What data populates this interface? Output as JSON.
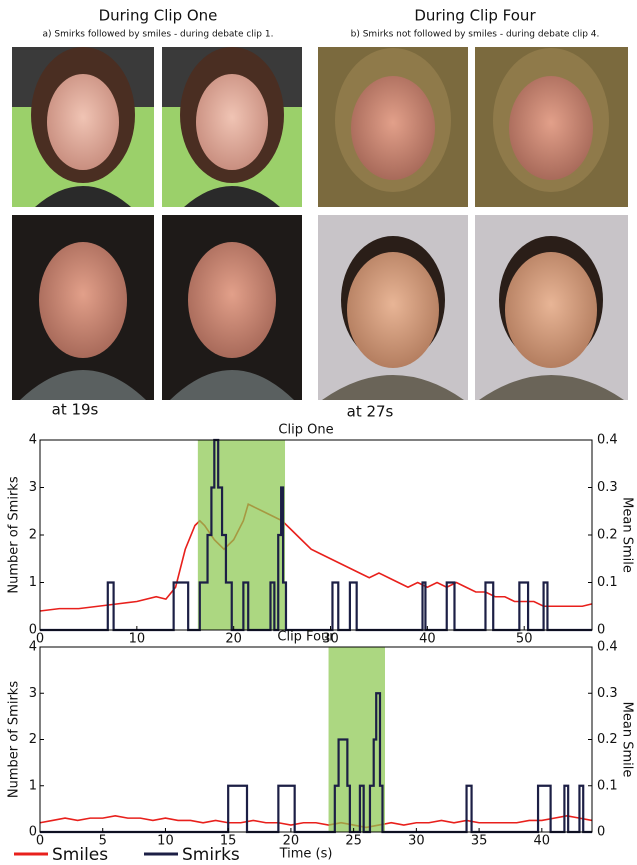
{
  "panels": [
    {
      "heading": "During Clip One",
      "caption": "a) Smirks followed by smiles - during debate clip 1.",
      "time_label": "at 19s"
    },
    {
      "heading": "During Clip Four",
      "caption": "b) Smirks not followed by smiles - during debate clip 4.",
      "time_label": "at 27s"
    }
  ],
  "chart_data": [
    {
      "type": "line",
      "title": "Clip One",
      "ylabel": "Number of Smirks",
      "y2label": "Mean Smile",
      "xlim": [
        0,
        57
      ],
      "xticks": [
        0,
        10,
        20,
        30,
        40,
        50
      ],
      "ylim": [
        0,
        4
      ],
      "yticks": [
        0,
        1,
        2,
        3,
        4
      ],
      "y2lim": [
        0,
        0.4
      ],
      "y2ticks": [
        0,
        0.1,
        0.2,
        0.3,
        0.4
      ],
      "highlight": [
        16.3,
        25.3
      ],
      "highlight_color": "#8cc850",
      "series": [
        {
          "color": "#e8201c",
          "axis": "y2",
          "x": [
            0,
            2,
            4,
            6,
            8,
            10,
            12,
            13,
            14,
            15,
            16,
            16.5,
            17,
            18,
            19,
            20,
            21,
            21.5,
            22,
            23,
            24,
            25,
            26,
            27,
            28,
            29,
            30,
            31,
            32,
            33,
            34,
            35,
            36,
            37,
            38,
            39,
            40,
            41,
            42,
            43,
            44,
            45,
            46,
            47,
            48,
            49,
            50,
            51,
            52,
            53,
            54,
            55,
            56,
            57
          ],
          "values": [
            0.04,
            0.045,
            0.045,
            0.05,
            0.055,
            0.06,
            0.07,
            0.065,
            0.09,
            0.17,
            0.22,
            0.23,
            0.22,
            0.19,
            0.17,
            0.19,
            0.23,
            0.265,
            0.26,
            0.25,
            0.24,
            0.23,
            0.21,
            0.19,
            0.17,
            0.16,
            0.15,
            0.14,
            0.13,
            0.12,
            0.11,
            0.12,
            0.11,
            0.1,
            0.09,
            0.1,
            0.09,
            0.1,
            0.09,
            0.1,
            0.09,
            0.08,
            0.08,
            0.07,
            0.07,
            0.06,
            0.06,
            0.06,
            0.05,
            0.05,
            0.05,
            0.05,
            0.05,
            0.055
          ]
        },
        {
          "color": "#1c1f45",
          "step": true,
          "x": [
            0,
            7,
            7.6,
            13.8,
            15.3,
            16.5,
            17.3,
            17.7,
            18.0,
            18.4,
            18.8,
            19.2,
            19.8,
            21.0,
            21.5,
            23.8,
            24.2,
            24.6,
            24.9,
            25.1,
            25.4,
            30.2,
            30.8,
            32.0,
            32.7,
            39.5,
            39.8,
            42.0,
            42.8,
            46.0,
            46.8,
            49.5,
            50.4,
            52.0,
            52.4,
            57
          ],
          "values": [
            0,
            1,
            0,
            1,
            0,
            1,
            2,
            3,
            4,
            3,
            2,
            1,
            0,
            1,
            0,
            1,
            0,
            2,
            3,
            1,
            0,
            1,
            0,
            1,
            0,
            1,
            0,
            1,
            0,
            1,
            0,
            1,
            0,
            1,
            0,
            0
          ]
        }
      ]
    },
    {
      "type": "line",
      "title": "Clip Four",
      "xlabel": "Time (s)",
      "ylabel": "Number of Smirks",
      "y2label": "Mean Smile",
      "xlim": [
        0,
        44
      ],
      "xticks": [
        0,
        5,
        10,
        15,
        20,
        25,
        30,
        35,
        40
      ],
      "ylim": [
        0,
        4
      ],
      "yticks": [
        0,
        1,
        2,
        3,
        4
      ],
      "y2lim": [
        0,
        0.4
      ],
      "y2ticks": [
        0,
        0.1,
        0.2,
        0.3,
        0.4
      ],
      "highlight": [
        23.0,
        27.5
      ],
      "highlight_color": "#8cc850",
      "series": [
        {
          "name": "Smiles",
          "color": "#e8201c",
          "axis": "y2",
          "x": [
            0,
            1,
            2,
            3,
            4,
            5,
            6,
            7,
            8,
            9,
            10,
            11,
            12,
            13,
            14,
            15,
            16,
            17,
            18,
            19,
            20,
            21,
            22,
            23,
            24,
            25,
            26,
            27,
            28,
            29,
            30,
            31,
            32,
            33,
            34,
            35,
            36,
            37,
            38,
            39,
            40,
            41,
            42,
            43,
            44
          ],
          "values": [
            0.02,
            0.025,
            0.03,
            0.025,
            0.03,
            0.03,
            0.035,
            0.03,
            0.03,
            0.025,
            0.03,
            0.025,
            0.025,
            0.02,
            0.025,
            0.02,
            0.02,
            0.025,
            0.02,
            0.02,
            0.015,
            0.02,
            0.02,
            0.015,
            0.02,
            0.015,
            0.01,
            0.015,
            0.02,
            0.015,
            0.02,
            0.02,
            0.025,
            0.02,
            0.025,
            0.02,
            0.02,
            0.02,
            0.02,
            0.025,
            0.025,
            0.03,
            0.035,
            0.03,
            0.025
          ]
        },
        {
          "name": "Smirks",
          "color": "#1c1f45",
          "step": true,
          "x": [
            0,
            15.0,
            16.5,
            19.0,
            20.3,
            23.5,
            23.8,
            24.5,
            24.7,
            25.5,
            25.8,
            26.3,
            26.6,
            26.8,
            27.1,
            27.3,
            34.0,
            34.4,
            39.7,
            40.7,
            41.8,
            42.1,
            43.0,
            43.3,
            44
          ],
          "values": [
            0,
            1,
            0,
            1,
            0,
            1,
            2,
            1,
            0,
            1,
            0,
            1,
            2,
            3,
            1,
            0,
            1,
            0,
            1,
            0,
            1,
            0,
            1,
            0,
            0
          ]
        }
      ]
    }
  ]
}
